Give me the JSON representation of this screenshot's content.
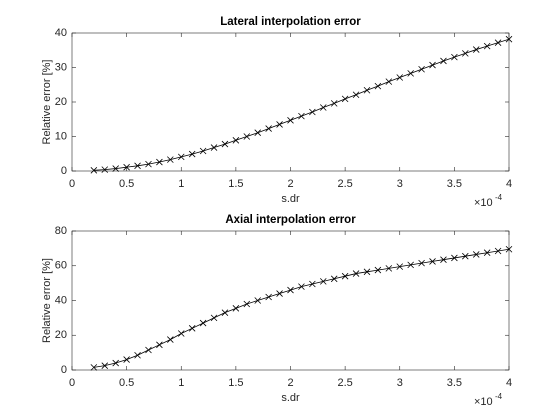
{
  "chart_data": [
    {
      "type": "line",
      "title": "Lateral interpolation error",
      "xlabel": "s.dr",
      "ylabel": "Relative error [%]",
      "x_multiplier": {
        "base": "×10",
        "exponent": "-4"
      },
      "x": [
        0.2,
        0.3,
        0.4,
        0.5,
        0.6,
        0.7,
        0.8,
        0.9,
        1.0,
        1.1,
        1.2,
        1.3,
        1.4,
        1.5,
        1.6,
        1.7,
        1.8,
        1.9,
        2.0,
        2.1,
        2.2,
        2.3,
        2.4,
        2.5,
        2.6,
        2.7,
        2.8,
        2.9,
        3.0,
        3.1,
        3.2,
        3.3,
        3.4,
        3.5,
        3.6,
        3.7,
        3.8,
        3.9,
        4.0
      ],
      "series": [
        {
          "color": "#000000",
          "marker": "x",
          "values": [
            0.2,
            0.4,
            0.7,
            1.1,
            1.5,
            2.0,
            2.6,
            3.3,
            4.1,
            4.9,
            5.8,
            6.8,
            7.8,
            8.9,
            10.0,
            11.1,
            12.3,
            13.5,
            14.7,
            15.9,
            17.1,
            18.4,
            19.6,
            20.9,
            22.1,
            23.4,
            24.6,
            25.9,
            27.1,
            28.3,
            29.5,
            30.7,
            31.9,
            33.0,
            34.1,
            35.2,
            36.2,
            37.2,
            38.2
          ]
        }
      ],
      "xlim": [
        0,
        4
      ],
      "xticks": [
        0,
        0.5,
        1,
        1.5,
        2,
        2.5,
        3,
        3.5,
        4
      ],
      "ylim": [
        0,
        40
      ],
      "yticks": [
        0,
        10,
        20,
        30,
        40
      ],
      "grid": false
    },
    {
      "type": "line",
      "title": "Axial interpolation error",
      "xlabel": "s.dr",
      "ylabel": "Relative error [%]",
      "x_multiplier": {
        "base": "×10",
        "exponent": "-4"
      },
      "x": [
        0.2,
        0.3,
        0.4,
        0.5,
        0.6,
        0.7,
        0.8,
        0.9,
        1.0,
        1.1,
        1.2,
        1.3,
        1.4,
        1.5,
        1.6,
        1.7,
        1.8,
        1.9,
        2.0,
        2.1,
        2.2,
        2.3,
        2.4,
        2.5,
        2.6,
        2.7,
        2.8,
        2.9,
        3.0,
        3.1,
        3.2,
        3.3,
        3.4,
        3.5,
        3.6,
        3.7,
        3.8,
        3.9,
        4.0
      ],
      "series": [
        {
          "color": "#000000",
          "marker": "x",
          "values": [
            1.5,
            2.5,
            4,
            6,
            8.5,
            11.5,
            14.5,
            17.5,
            21,
            24,
            27,
            30,
            33,
            35.5,
            38,
            40,
            42,
            44,
            46,
            48,
            49.5,
            51,
            52.5,
            54,
            55.5,
            56.5,
            57.5,
            58.5,
            59.5,
            60.5,
            61.5,
            62.5,
            63.5,
            64.5,
            65.5,
            66.5,
            67.5,
            68.5,
            69.5
          ]
        }
      ],
      "xlim": [
        0,
        4
      ],
      "xticks": [
        0,
        0.5,
        1,
        1.5,
        2,
        2.5,
        3,
        3.5,
        4
      ],
      "ylim": [
        0,
        80
      ],
      "yticks": [
        0,
        20,
        40,
        60,
        80
      ],
      "grid": false
    }
  ]
}
